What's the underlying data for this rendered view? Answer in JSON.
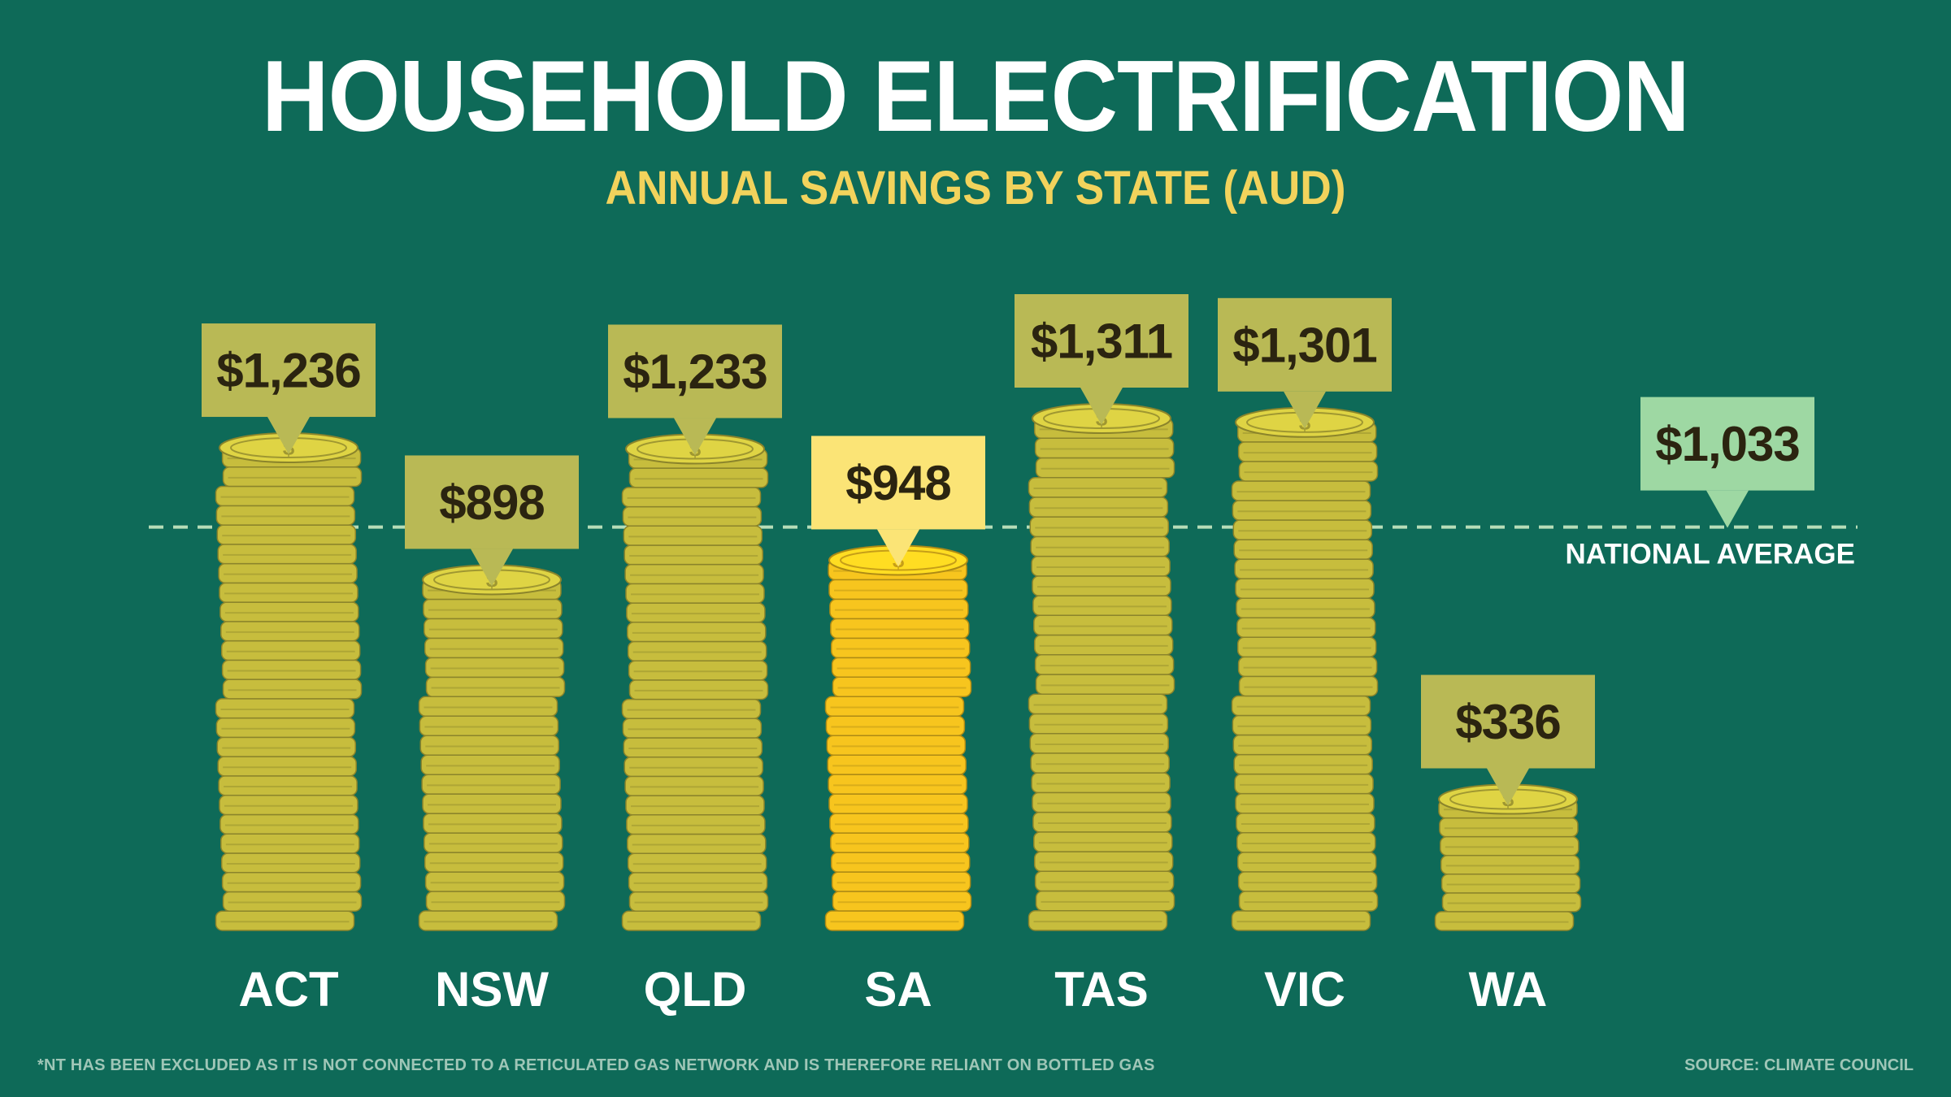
{
  "header": {
    "title": "HOUSEHOLD ELECTRIFICATION",
    "subtitle": "ANNUAL SAVINGS BY STATE (AUD)"
  },
  "footer": {
    "footnote": "*NT HAS BEEN EXCLUDED AS IT IS NOT CONNECTED TO A RETICULATED GAS NETWORK AND IS THEREFORE RELIANT ON BOTTLED GAS",
    "source": "SOURCE: CLIMATE COUNCIL"
  },
  "chart_data": {
    "type": "bar",
    "title": "HOUSEHOLD ELECTRIFICATION",
    "subtitle": "ANNUAL SAVINGS BY STATE (AUD)",
    "categories": [
      "ACT",
      "NSW",
      "QLD",
      "SA",
      "TAS",
      "VIC",
      "WA"
    ],
    "values": [
      1236,
      898,
      1233,
      948,
      1311,
      1301,
      336
    ],
    "value_labels": [
      "$1,236",
      "$898",
      "$1,233",
      "$948",
      "$1,311",
      "$1,301",
      "$336"
    ],
    "highlighted_category": "SA",
    "reference_line": {
      "label": "NATIONAL AVERAGE",
      "value": 1033,
      "value_label": "$1,033"
    },
    "ylim": [
      0,
      1400
    ],
    "xlabel": "",
    "ylabel": "",
    "grid": false,
    "legend": "none"
  },
  "colors": {
    "background": "#0e6a58",
    "coin": "#c7bd3d",
    "coin_highlight": "#f7c51e",
    "callout": "#b9b955",
    "callout_highlight": "#fbe476",
    "callout_average": "#9ed8a3",
    "value_text": "#2b2410",
    "average_line": "#b7ddb8"
  }
}
